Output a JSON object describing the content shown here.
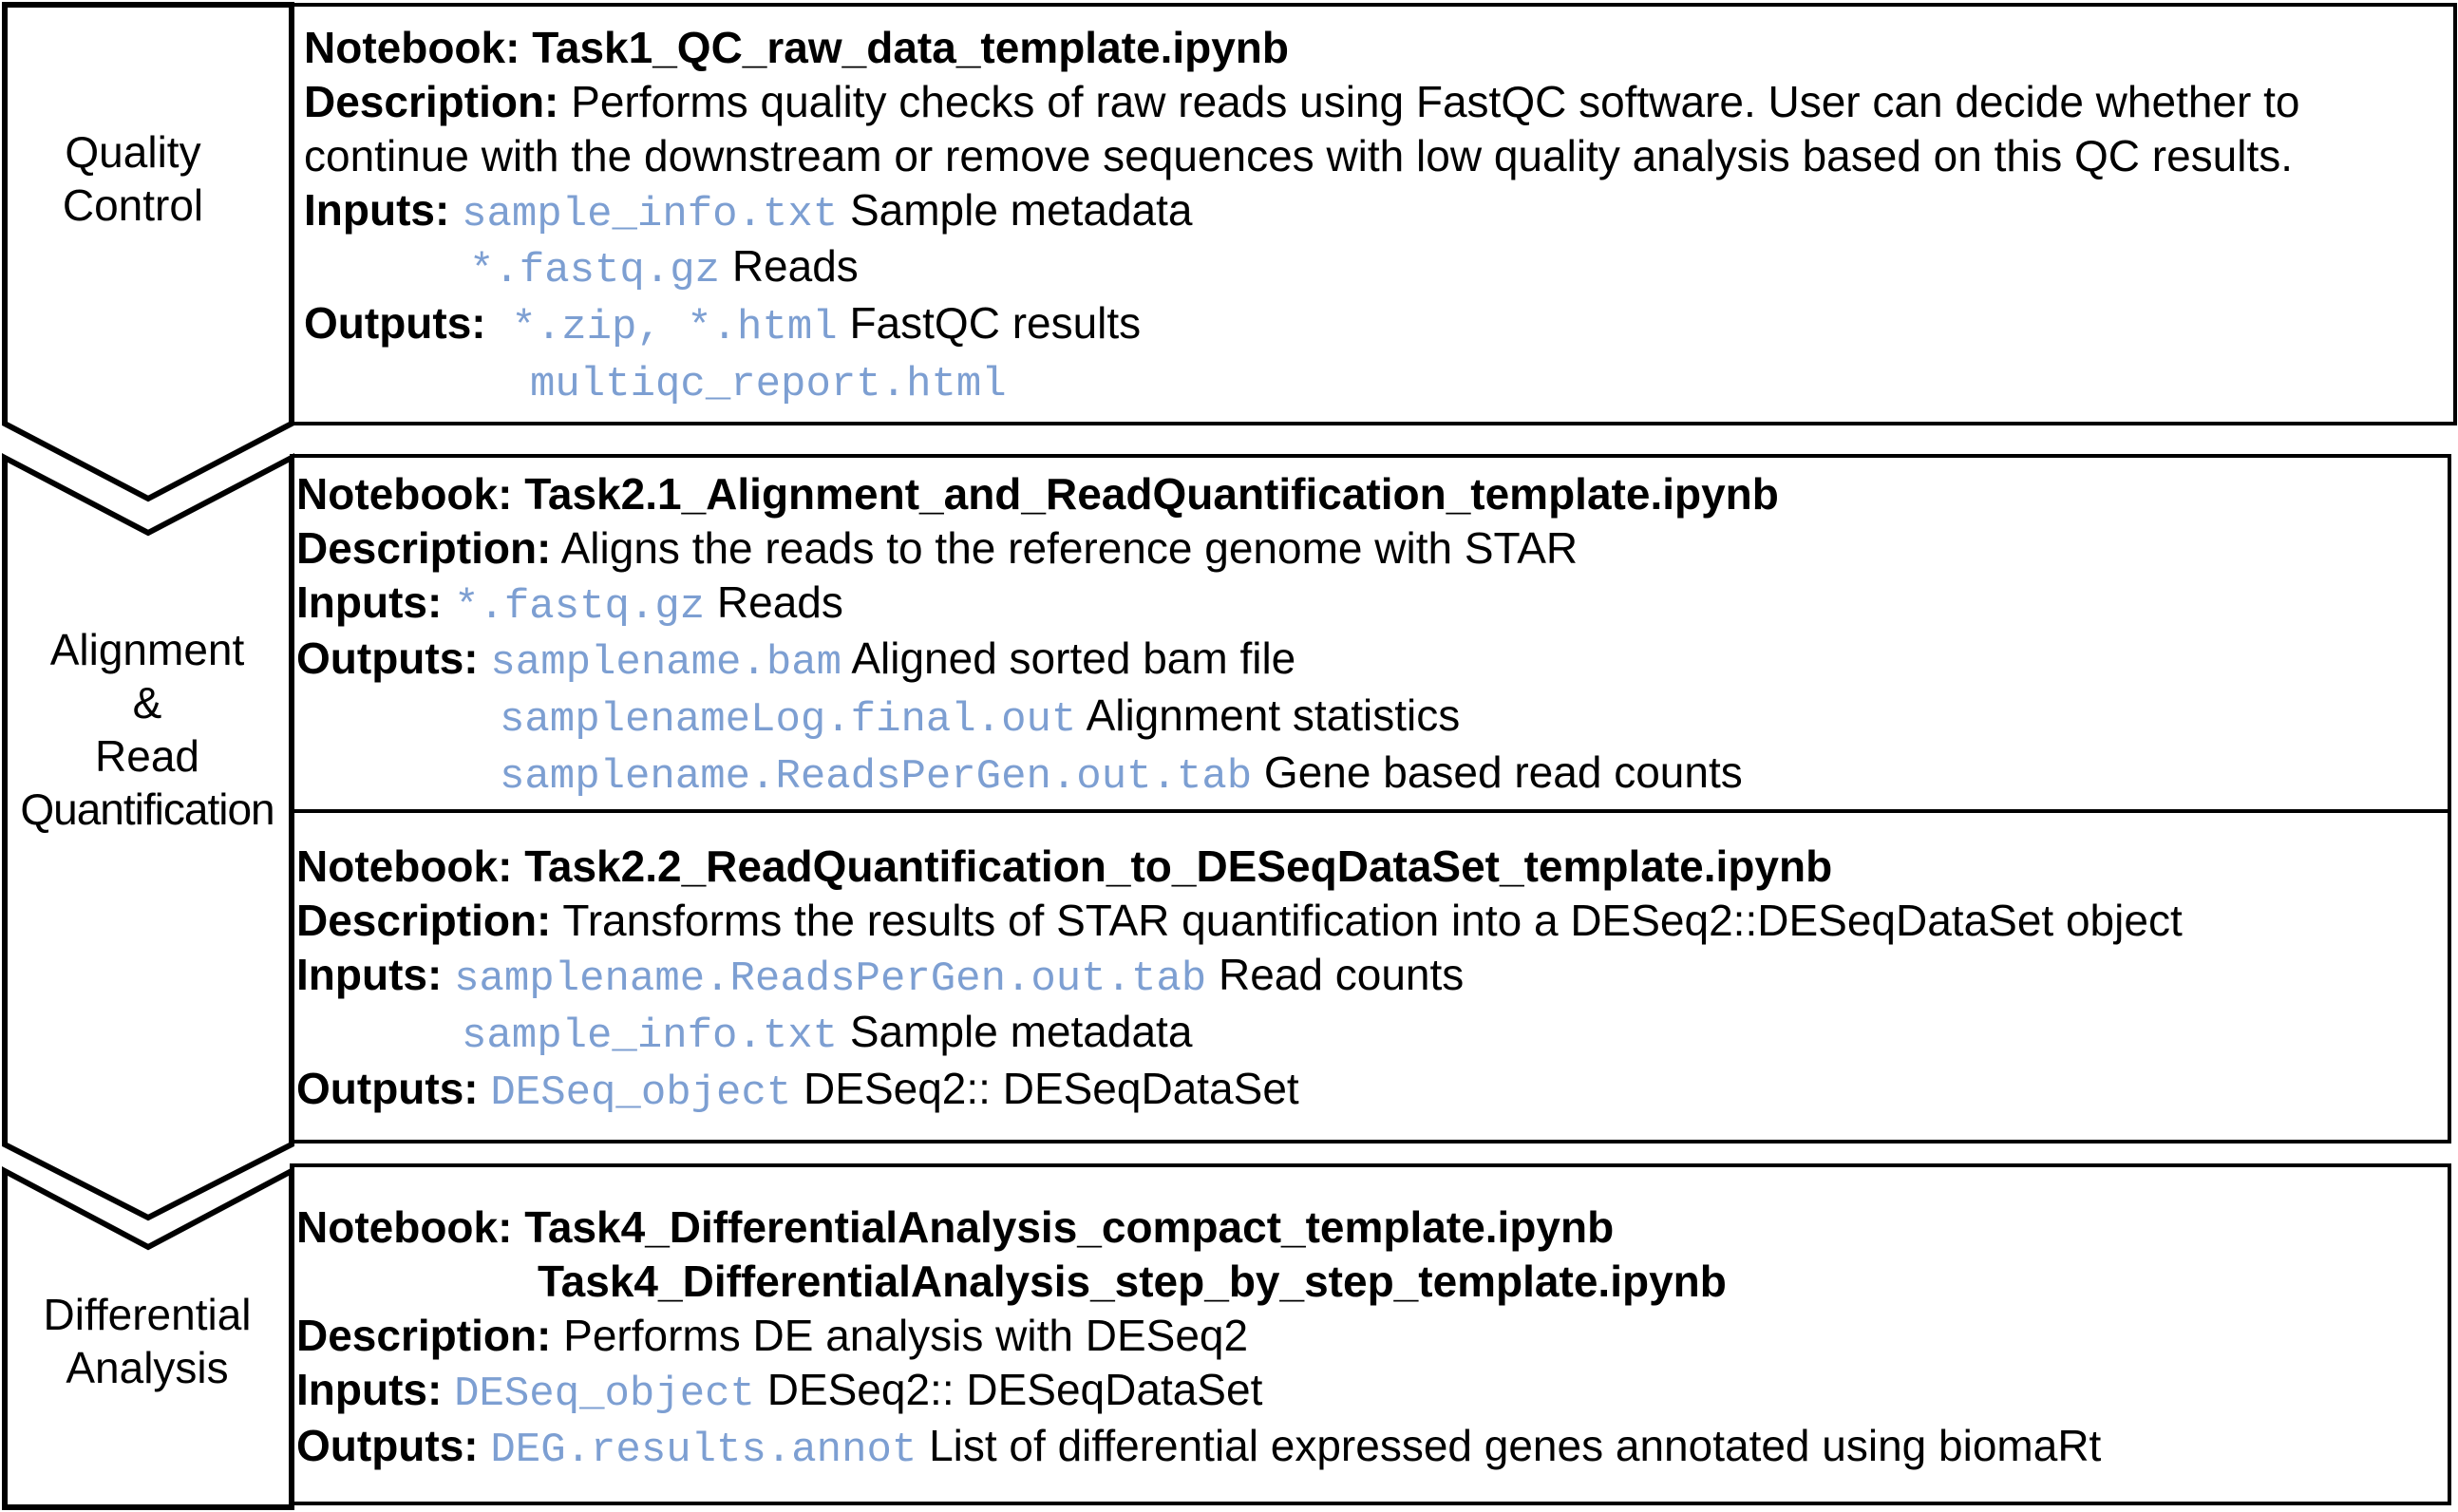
{
  "colors": {
    "stroke": "#000000",
    "file": "#7d9fd2",
    "text": "#000000",
    "background": "#ffffff"
  },
  "stages": [
    {
      "label_lines": [
        "Quality",
        "Control"
      ]
    },
    {
      "label_lines": [
        "Alignment",
        "&",
        "Read",
        "Quantification"
      ]
    },
    {
      "label_lines": [
        "Differential",
        "Analysis"
      ]
    }
  ],
  "boxes": {
    "task1": {
      "notebook_label": "Notebook:",
      "notebook": "Task1_QC_raw_data_template.ipynb",
      "description_label": "Description:",
      "description_lines": [
        "Performs quality checks of raw reads using FastQC software. User can decide whether to",
        "continue with the downstream or remove sequences with low quality analysis based on this QC results."
      ],
      "inputs_label": "Inputs:",
      "inputs": [
        {
          "file": "sample_info.txt",
          "desc": "Sample metadata"
        },
        {
          "file": "*.fastq.gz",
          "desc": "Reads"
        }
      ],
      "outputs_label": "Outputs:",
      "outputs": [
        {
          "file": "*.zip, *.html",
          "desc": "FastQC results"
        },
        {
          "file": "multiqc_report.html",
          "desc": ""
        }
      ]
    },
    "task21": {
      "notebook_label": "Notebook:",
      "notebook": "Task2.1_Alignment_and_ReadQuantification_template.ipynb",
      "description_label": "Description:",
      "description": "Aligns the reads to the reference genome with STAR",
      "inputs_label": "Inputs:",
      "inputs": [
        {
          "file": "*.fastq.gz",
          "desc": "Reads"
        }
      ],
      "outputs_label": "Outputs:",
      "outputs": [
        {
          "file": "samplename.bam",
          "desc": "Aligned sorted bam file"
        },
        {
          "file": "samplenameLog.final.out",
          "desc": "Alignment statistics"
        },
        {
          "file": "samplename.ReadsPerGen.out.tab",
          "desc": "Gene based read counts"
        }
      ]
    },
    "task22": {
      "notebook_label": "Notebook:",
      "notebook": "Task2.2_ReadQuantification_to_DESeqDataSet_template.ipynb",
      "description_label": "Description:",
      "description": "Transforms the results of STAR quantification into a DESeq2::DESeqDataSet object",
      "inputs_label": "Inputs:",
      "inputs": [
        {
          "file": "samplename.ReadsPerGen.out.tab",
          "desc": "Read counts"
        },
        {
          "file": "sample_info.txt",
          "desc": "Sample metadata"
        }
      ],
      "outputs_label": "Outputs:",
      "outputs": [
        {
          "file": "DESeq_object",
          "desc": "DESeq2:: DESeqDataSet"
        }
      ]
    },
    "task4": {
      "notebook_label": "Notebook:",
      "notebooks": [
        "Task4_DifferentialAnalysis_compact_template.ipynb",
        "Task4_DifferentialAnalysis_step_by_step_template.ipynb"
      ],
      "description_label": "Description:",
      "description": "Performs DE analysis with DESeq2",
      "inputs_label": "Inputs:",
      "inputs": [
        {
          "file": "DESeq_object",
          "desc": "DESeq2:: DESeqDataSet"
        }
      ],
      "outputs_label": "Outputs:",
      "outputs": [
        {
          "file": "DEG.results.annot",
          "desc": "List of differential expressed genes annotated using biomaRt"
        }
      ]
    }
  }
}
